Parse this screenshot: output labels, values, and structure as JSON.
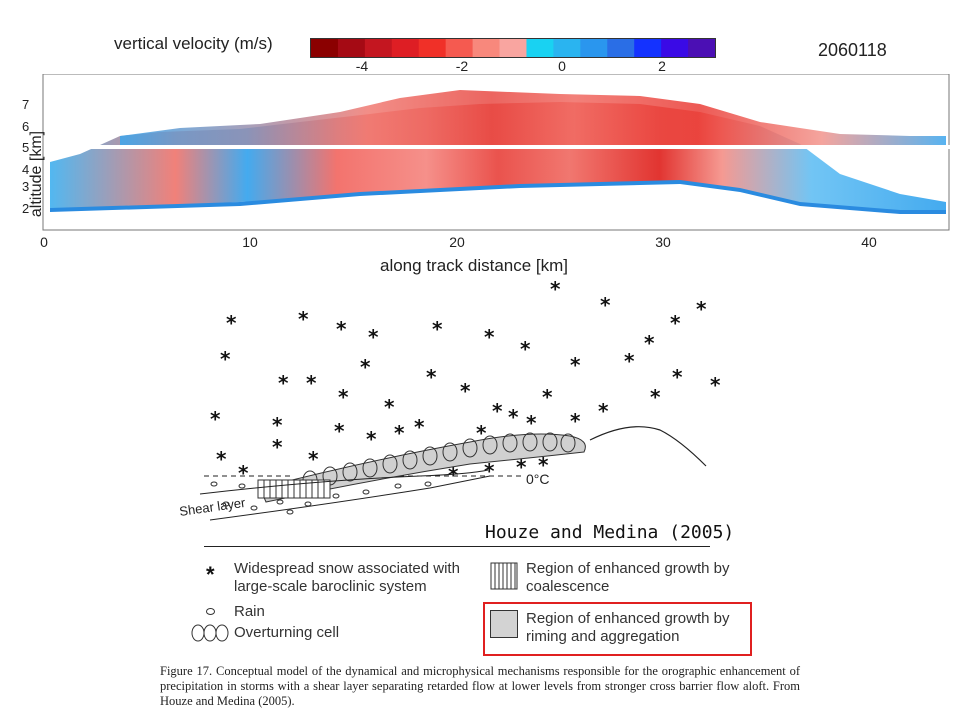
{
  "header": {
    "title": "vertical velocity (m/s)",
    "case_id": "2060118"
  },
  "colorbar": {
    "ticks": [
      "-4",
      "-2",
      "0",
      "2"
    ],
    "colors": [
      "#8b0000",
      "#a50a14",
      "#c41620",
      "#de1e24",
      "#f03028",
      "#f55a50",
      "#f8887c",
      "#f9a5a0",
      "#19d2f2",
      "#2ab4f0",
      "#2a96ee",
      "#2a6ee6",
      "#1432ff",
      "#3a0ae6",
      "#4b0fb4"
    ]
  },
  "radar_plot": {
    "ylabel": "altitude [km]",
    "xlabel": "along track distance [km]",
    "y_ticks": [
      "2",
      "3",
      "4",
      "5",
      "6",
      "7"
    ],
    "x_ticks": [
      "0",
      "10",
      "20",
      "30",
      "40"
    ]
  },
  "diagram": {
    "freezing_label": "0°C",
    "shear_label": "Shear layer",
    "credit": "Houze and Medina (2005)"
  },
  "legend": {
    "snow": "Widespread snow associated with large-scale baroclinic system",
    "rain": "Rain",
    "overturning": "Overturning cell",
    "coalescence": "Region of enhanced growth by coalescence",
    "riming": "Region of enhanced growth by riming and aggregation"
  },
  "caption": {
    "text": "Figure 17.   Conceptual model of the dynamical and microphysical mechanisms responsible for the orographic enhancement of precipitation in storms with a shear layer separating retarded flow at lower levels from stronger cross barrier flow aloft. From Houze and Medina (2005)."
  },
  "colors": {
    "highlight_box": "#e02020",
    "updraft_red": "#e83a3a",
    "downdraft_blue": "#3aa6ee"
  }
}
